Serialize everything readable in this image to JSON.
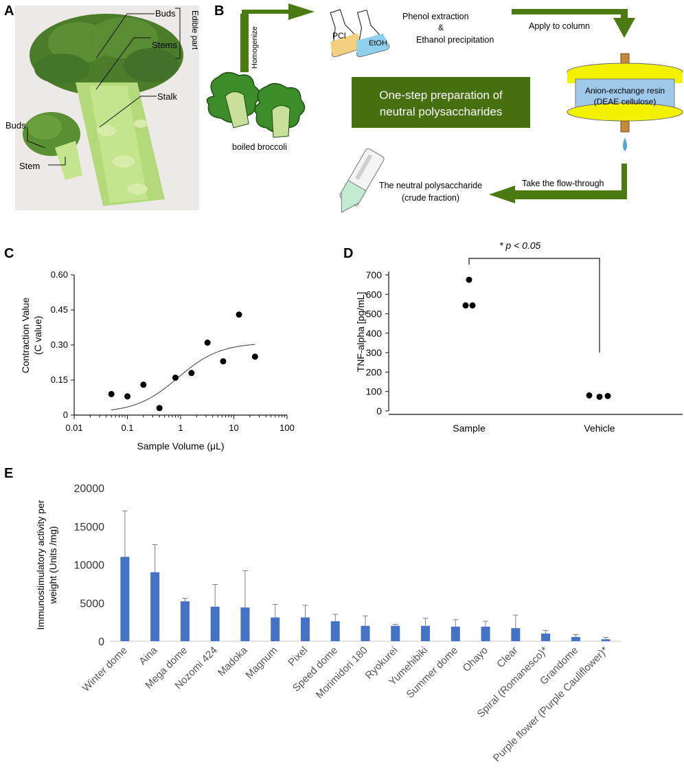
{
  "panels": {
    "a": {
      "letter": "A",
      "labels": {
        "buds_top": "Buds",
        "stems": "Stems",
        "stalk": "Stalk",
        "edible": "Edible part",
        "buds_left": "Buds",
        "stem": "Stem"
      }
    },
    "b": {
      "letter": "B",
      "homogenize": "Homogenize",
      "pci": "PCI",
      "etoh": "EtOH",
      "phenol": "Phenol extraction",
      "amp": "&",
      "ethanol": "Ethanol precipitation",
      "apply": "Apply to column",
      "center_line1": "One-step preparation of",
      "center_line2": "neutral polysaccharides",
      "resin1": "Anion-exchange resin",
      "resin2": "(DEAE cellulose)",
      "boiled": "boiled broccoli",
      "take": "Take the flow-through",
      "neutral1": "The neutral polysaccharide",
      "neutral2": "(crude fraction)"
    },
    "c": {
      "letter": "C"
    },
    "d": {
      "letter": "D"
    },
    "e": {
      "letter": "E"
    }
  },
  "colors": {
    "arrow_green": "#4a7a10",
    "box_green": "#466f10",
    "bar_blue": "#4472c4",
    "resin_yellow": "#f2f200",
    "resin_blue": "#9ec9e8",
    "broccoli_green": "#3c8c2a"
  },
  "chart_data": [
    {
      "type": "scatter",
      "panel": "C",
      "xlabel": "Sample Volume (μL)",
      "ylabel_line1": "Contraction Value",
      "ylabel_line2": "(C value)",
      "xscale": "log",
      "xlim": [
        0.01,
        100
      ],
      "ylim": [
        0,
        0.6
      ],
      "x_ticks": [
        0.01,
        0.1,
        1,
        10,
        100
      ],
      "x_tick_labels": [
        "0.01",
        "0.1",
        "1",
        "10",
        "100"
      ],
      "y_ticks": [
        0,
        0.15,
        0.3,
        0.45,
        0.6
      ],
      "y_tick_labels": [
        "0",
        "0.15",
        "0.30",
        "0.45",
        "0.60"
      ],
      "points": [
        {
          "x": 0.05,
          "y": 0.09
        },
        {
          "x": 0.1,
          "y": 0.08
        },
        {
          "x": 0.2,
          "y": 0.13
        },
        {
          "x": 0.4,
          "y": 0.03
        },
        {
          "x": 0.8,
          "y": 0.16
        },
        {
          "x": 1.6,
          "y": 0.18
        },
        {
          "x": 3.2,
          "y": 0.31
        },
        {
          "x": 6.3,
          "y": 0.23
        },
        {
          "x": 12.5,
          "y": 0.43
        },
        {
          "x": 25,
          "y": 0.25
        }
      ],
      "fit_curve": {
        "type": "sigmoid",
        "bottom": 0.01,
        "top": 0.31,
        "log_ec50": -0.05,
        "hill": 1.1,
        "x_range": [
          0.05,
          25
        ]
      }
    },
    {
      "type": "scatter",
      "panel": "D",
      "ylabel": "TNF-alpha [pg/mL]",
      "categories": [
        "Sample",
        "Vehicle"
      ],
      "ylim": [
        0,
        700
      ],
      "y_ticks": [
        0,
        100,
        200,
        300,
        400,
        500,
        600,
        700
      ],
      "y_tick_labels": [
        "0",
        "100",
        "200",
        "300",
        "400",
        "500",
        "600",
        "700"
      ],
      "points": [
        {
          "category": "Sample",
          "y": 675
        },
        {
          "category": "Sample",
          "y": 543
        },
        {
          "category": "Sample",
          "y": 543
        },
        {
          "category": "Vehicle",
          "y": 80
        },
        {
          "category": "Vehicle",
          "y": 73
        },
        {
          "category": "Vehicle",
          "y": 77
        }
      ],
      "annotation": "* p < 0.05"
    },
    {
      "type": "bar",
      "panel": "E",
      "ylabel_line1": "Immunostimulatory activity per",
      "ylabel_line2": "weight (Units /mg)",
      "ylim": [
        0,
        20000
      ],
      "y_ticks": [
        0,
        5000,
        10000,
        15000,
        20000
      ],
      "y_tick_labels": [
        "0",
        "5000",
        "10000",
        "15000",
        "20000"
      ],
      "categories": [
        "Winter dome",
        "Aina",
        "Mega dome",
        "Nozomi 424",
        "Madoka",
        "Magnum",
        "Pixel",
        "Speed dome",
        "Morimidori 180",
        "Ryokurei",
        "Yumehibiki",
        "Summer dome",
        "Ohayo",
        "Clear",
        "Spiral (Romanesco)*",
        "Grandome",
        "Purple flower (Purple Cauliflower)*"
      ],
      "values": [
        11000,
        9000,
        5200,
        4500,
        4400,
        3100,
        3100,
        2600,
        2000,
        2000,
        2000,
        1900,
        1900,
        1700,
        1000,
        550,
        250
      ],
      "errors": [
        6000,
        3600,
        400,
        2900,
        4800,
        1700,
        1600,
        900,
        1300,
        200,
        1000,
        900,
        700,
        1700,
        400,
        300,
        250
      ]
    }
  ]
}
